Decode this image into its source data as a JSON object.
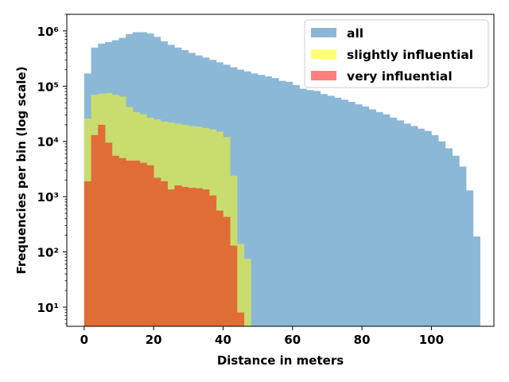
{
  "chart_data": {
    "type": "bar",
    "subtype": "overlaid histogram",
    "xlabel": "Distance in meters",
    "ylabel": "Frequencies per bin (log scale)",
    "y_scale": "log",
    "xlim": [
      -5,
      118
    ],
    "ylim": [
      4.5,
      2000000
    ],
    "x_ticks": [
      0,
      20,
      40,
      60,
      80,
      100
    ],
    "y_ticks": [
      {
        "value": 10,
        "label": "10¹"
      },
      {
        "value": 100,
        "label": "10²"
      },
      {
        "value": 1000,
        "label": "10³"
      },
      {
        "value": 10000,
        "label": "10⁴"
      },
      {
        "value": 100000,
        "label": "10⁵"
      },
      {
        "value": 1000000,
        "label": "10⁶"
      }
    ],
    "bin_width": 2,
    "grid": false,
    "legend_position": "top-right",
    "series": [
      {
        "name": "all",
        "color": "#8cb8d8",
        "bins": [
          [
            1,
            170000
          ],
          [
            3,
            500000
          ],
          [
            5,
            590000
          ],
          [
            7,
            630000
          ],
          [
            9,
            680000
          ],
          [
            11,
            750000
          ],
          [
            13,
            880000
          ],
          [
            15,
            950000
          ],
          [
            17,
            950000
          ],
          [
            19,
            900000
          ],
          [
            21,
            780000
          ],
          [
            23,
            650000
          ],
          [
            25,
            560000
          ],
          [
            27,
            500000
          ],
          [
            29,
            450000
          ],
          [
            31,
            400000
          ],
          [
            33,
            360000
          ],
          [
            35,
            330000
          ],
          [
            37,
            300000
          ],
          [
            39,
            270000
          ],
          [
            41,
            245000
          ],
          [
            43,
            220000
          ],
          [
            45,
            200000
          ],
          [
            47,
            185000
          ],
          [
            49,
            170000
          ],
          [
            51,
            160000
          ],
          [
            53,
            150000
          ],
          [
            55,
            140000
          ],
          [
            57,
            125000
          ],
          [
            59,
            120000
          ],
          [
            61,
            105000
          ],
          [
            63,
            90000
          ],
          [
            65,
            85000
          ],
          [
            67,
            82000
          ],
          [
            69,
            72000
          ],
          [
            71,
            67000
          ],
          [
            73,
            62000
          ],
          [
            75,
            57000
          ],
          [
            77,
            52000
          ],
          [
            79,
            47000
          ],
          [
            81,
            43000
          ],
          [
            83,
            38000
          ],
          [
            85,
            34000
          ],
          [
            87,
            31000
          ],
          [
            89,
            27000
          ],
          [
            91,
            24000
          ],
          [
            93,
            21000
          ],
          [
            95,
            19000
          ],
          [
            97,
            17000
          ],
          [
            99,
            15500
          ],
          [
            101,
            13000
          ],
          [
            103,
            10000
          ],
          [
            105,
            7500
          ],
          [
            107,
            5500
          ],
          [
            109,
            3500
          ],
          [
            111,
            1300
          ],
          [
            113,
            190
          ]
        ]
      },
      {
        "name": "slightly influential",
        "color": "#c9dc6e",
        "bins": [
          [
            1,
            26000
          ],
          [
            3,
            70000
          ],
          [
            5,
            73000
          ],
          [
            7,
            75000
          ],
          [
            9,
            70000
          ],
          [
            11,
            65000
          ],
          [
            13,
            42000
          ],
          [
            15,
            34000
          ],
          [
            17,
            31000
          ],
          [
            19,
            27000
          ],
          [
            21,
            25000
          ],
          [
            23,
            23000
          ],
          [
            25,
            22000
          ],
          [
            27,
            21000
          ],
          [
            29,
            20000
          ],
          [
            31,
            19000
          ],
          [
            33,
            18500
          ],
          [
            35,
            17500
          ],
          [
            37,
            16500
          ],
          [
            39,
            15000
          ],
          [
            41,
            12000
          ],
          [
            43,
            2400
          ],
          [
            45,
            140
          ],
          [
            47,
            75
          ]
        ]
      },
      {
        "name": "very influential",
        "color": "#e16d36",
        "bins": [
          [
            1,
            1900
          ],
          [
            3,
            13000
          ],
          [
            5,
            20000
          ],
          [
            7,
            9500
          ],
          [
            9,
            5500
          ],
          [
            11,
            5000
          ],
          [
            13,
            4500
          ],
          [
            15,
            4500
          ],
          [
            17,
            4100
          ],
          [
            19,
            3700
          ],
          [
            21,
            2200
          ],
          [
            23,
            1900
          ],
          [
            25,
            1350
          ],
          [
            27,
            1600
          ],
          [
            29,
            1500
          ],
          [
            31,
            1450
          ],
          [
            33,
            1420
          ],
          [
            35,
            1350
          ],
          [
            37,
            1050
          ],
          [
            39,
            560
          ],
          [
            41,
            430
          ],
          [
            43,
            130
          ],
          [
            45,
            8
          ]
        ]
      }
    ],
    "legend": [
      {
        "label": "all",
        "color": "#8cb8d8"
      },
      {
        "label": "slightly influential",
        "color": "#ffff77"
      },
      {
        "label": "very influential",
        "color": "#ff7f7f"
      }
    ]
  }
}
